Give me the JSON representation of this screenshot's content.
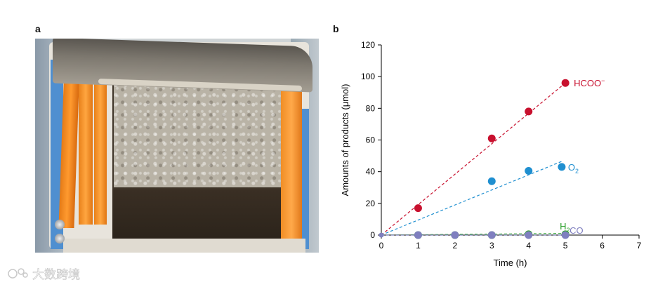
{
  "panel_labels": {
    "a": "a",
    "b": "b"
  },
  "watermark": {
    "text": "大数跨境",
    "icon": "logo-icon"
  },
  "photo": {
    "description_icon": "electrolysis-cell-photo"
  },
  "chart_data": {
    "type": "scatter",
    "xlabel": "Time (h)",
    "ylabel": "Amounts of products (μmol)",
    "xlim": [
      0,
      7
    ],
    "ylim": [
      0,
      120
    ],
    "xticks": [
      0,
      1,
      2,
      3,
      4,
      5,
      6,
      7
    ],
    "yticks": [
      0,
      20,
      40,
      60,
      80,
      100,
      120
    ],
    "grid": false,
    "series": [
      {
        "name": "HCOO⁻",
        "color": "#c8102e",
        "points": [
          [
            0,
            0
          ],
          [
            1,
            17
          ],
          [
            3,
            61
          ],
          [
            4,
            78
          ],
          [
            5,
            96
          ]
        ],
        "trendline": [
          [
            0,
            0
          ],
          [
            5,
            96
          ]
        ]
      },
      {
        "name": "O₂",
        "color": "#1f8fd0",
        "points": [
          [
            0,
            0
          ],
          [
            3,
            34
          ],
          [
            4,
            40.5
          ],
          [
            4.9,
            43
          ]
        ],
        "trendline": [
          [
            0,
            0
          ],
          [
            4.9,
            46.5
          ]
        ]
      },
      {
        "name": "H₂",
        "color": "#2ca02c",
        "points": [
          [
            0,
            0
          ],
          [
            1,
            0
          ],
          [
            2,
            0
          ],
          [
            3,
            0
          ],
          [
            4,
            0.5
          ],
          [
            5,
            0.5
          ]
        ],
        "trendline": [
          [
            0,
            0
          ],
          [
            5,
            1
          ]
        ]
      },
      {
        "name": "CO",
        "color": "#7f7fbf",
        "points": [
          [
            0,
            0
          ],
          [
            1,
            0
          ],
          [
            2,
            0
          ],
          [
            3,
            0
          ],
          [
            4,
            0
          ],
          [
            5,
            0
          ]
        ],
        "trendline": [
          [
            0,
            0
          ],
          [
            5,
            0
          ]
        ]
      }
    ],
    "labels": {
      "hcoo": {
        "text": "HCOO",
        "sup": "−"
      },
      "o2": {
        "text": "O",
        "sub": "2"
      },
      "h2": {
        "text": "H",
        "sub": "2"
      },
      "co": {
        "text": "CO"
      }
    }
  }
}
